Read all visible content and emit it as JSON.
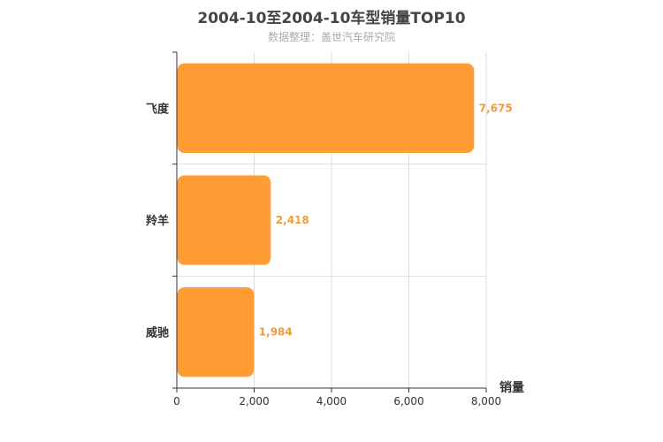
{
  "chart_data": {
    "type": "bar",
    "orientation": "horizontal",
    "title": "2004-10至2004-10车型销量TOP10",
    "subtitle": "数据整理：盖世汽车研究院",
    "xlabel": "销量",
    "ylabel": "",
    "categories": [
      "飞度",
      "羚羊",
      "威驰"
    ],
    "values": [
      7675,
      2418,
      1984
    ],
    "value_labels": [
      "7,675",
      "2,418",
      "1,984"
    ],
    "xlim": [
      0,
      8000
    ],
    "xticks": [
      0,
      2000,
      4000,
      6000,
      8000
    ],
    "xtick_labels": [
      "0",
      "2,000",
      "4,000",
      "6,000",
      "8,000"
    ],
    "grid": true,
    "bar_color": "#ff9c33",
    "label_color": "#ef9a3c"
  }
}
